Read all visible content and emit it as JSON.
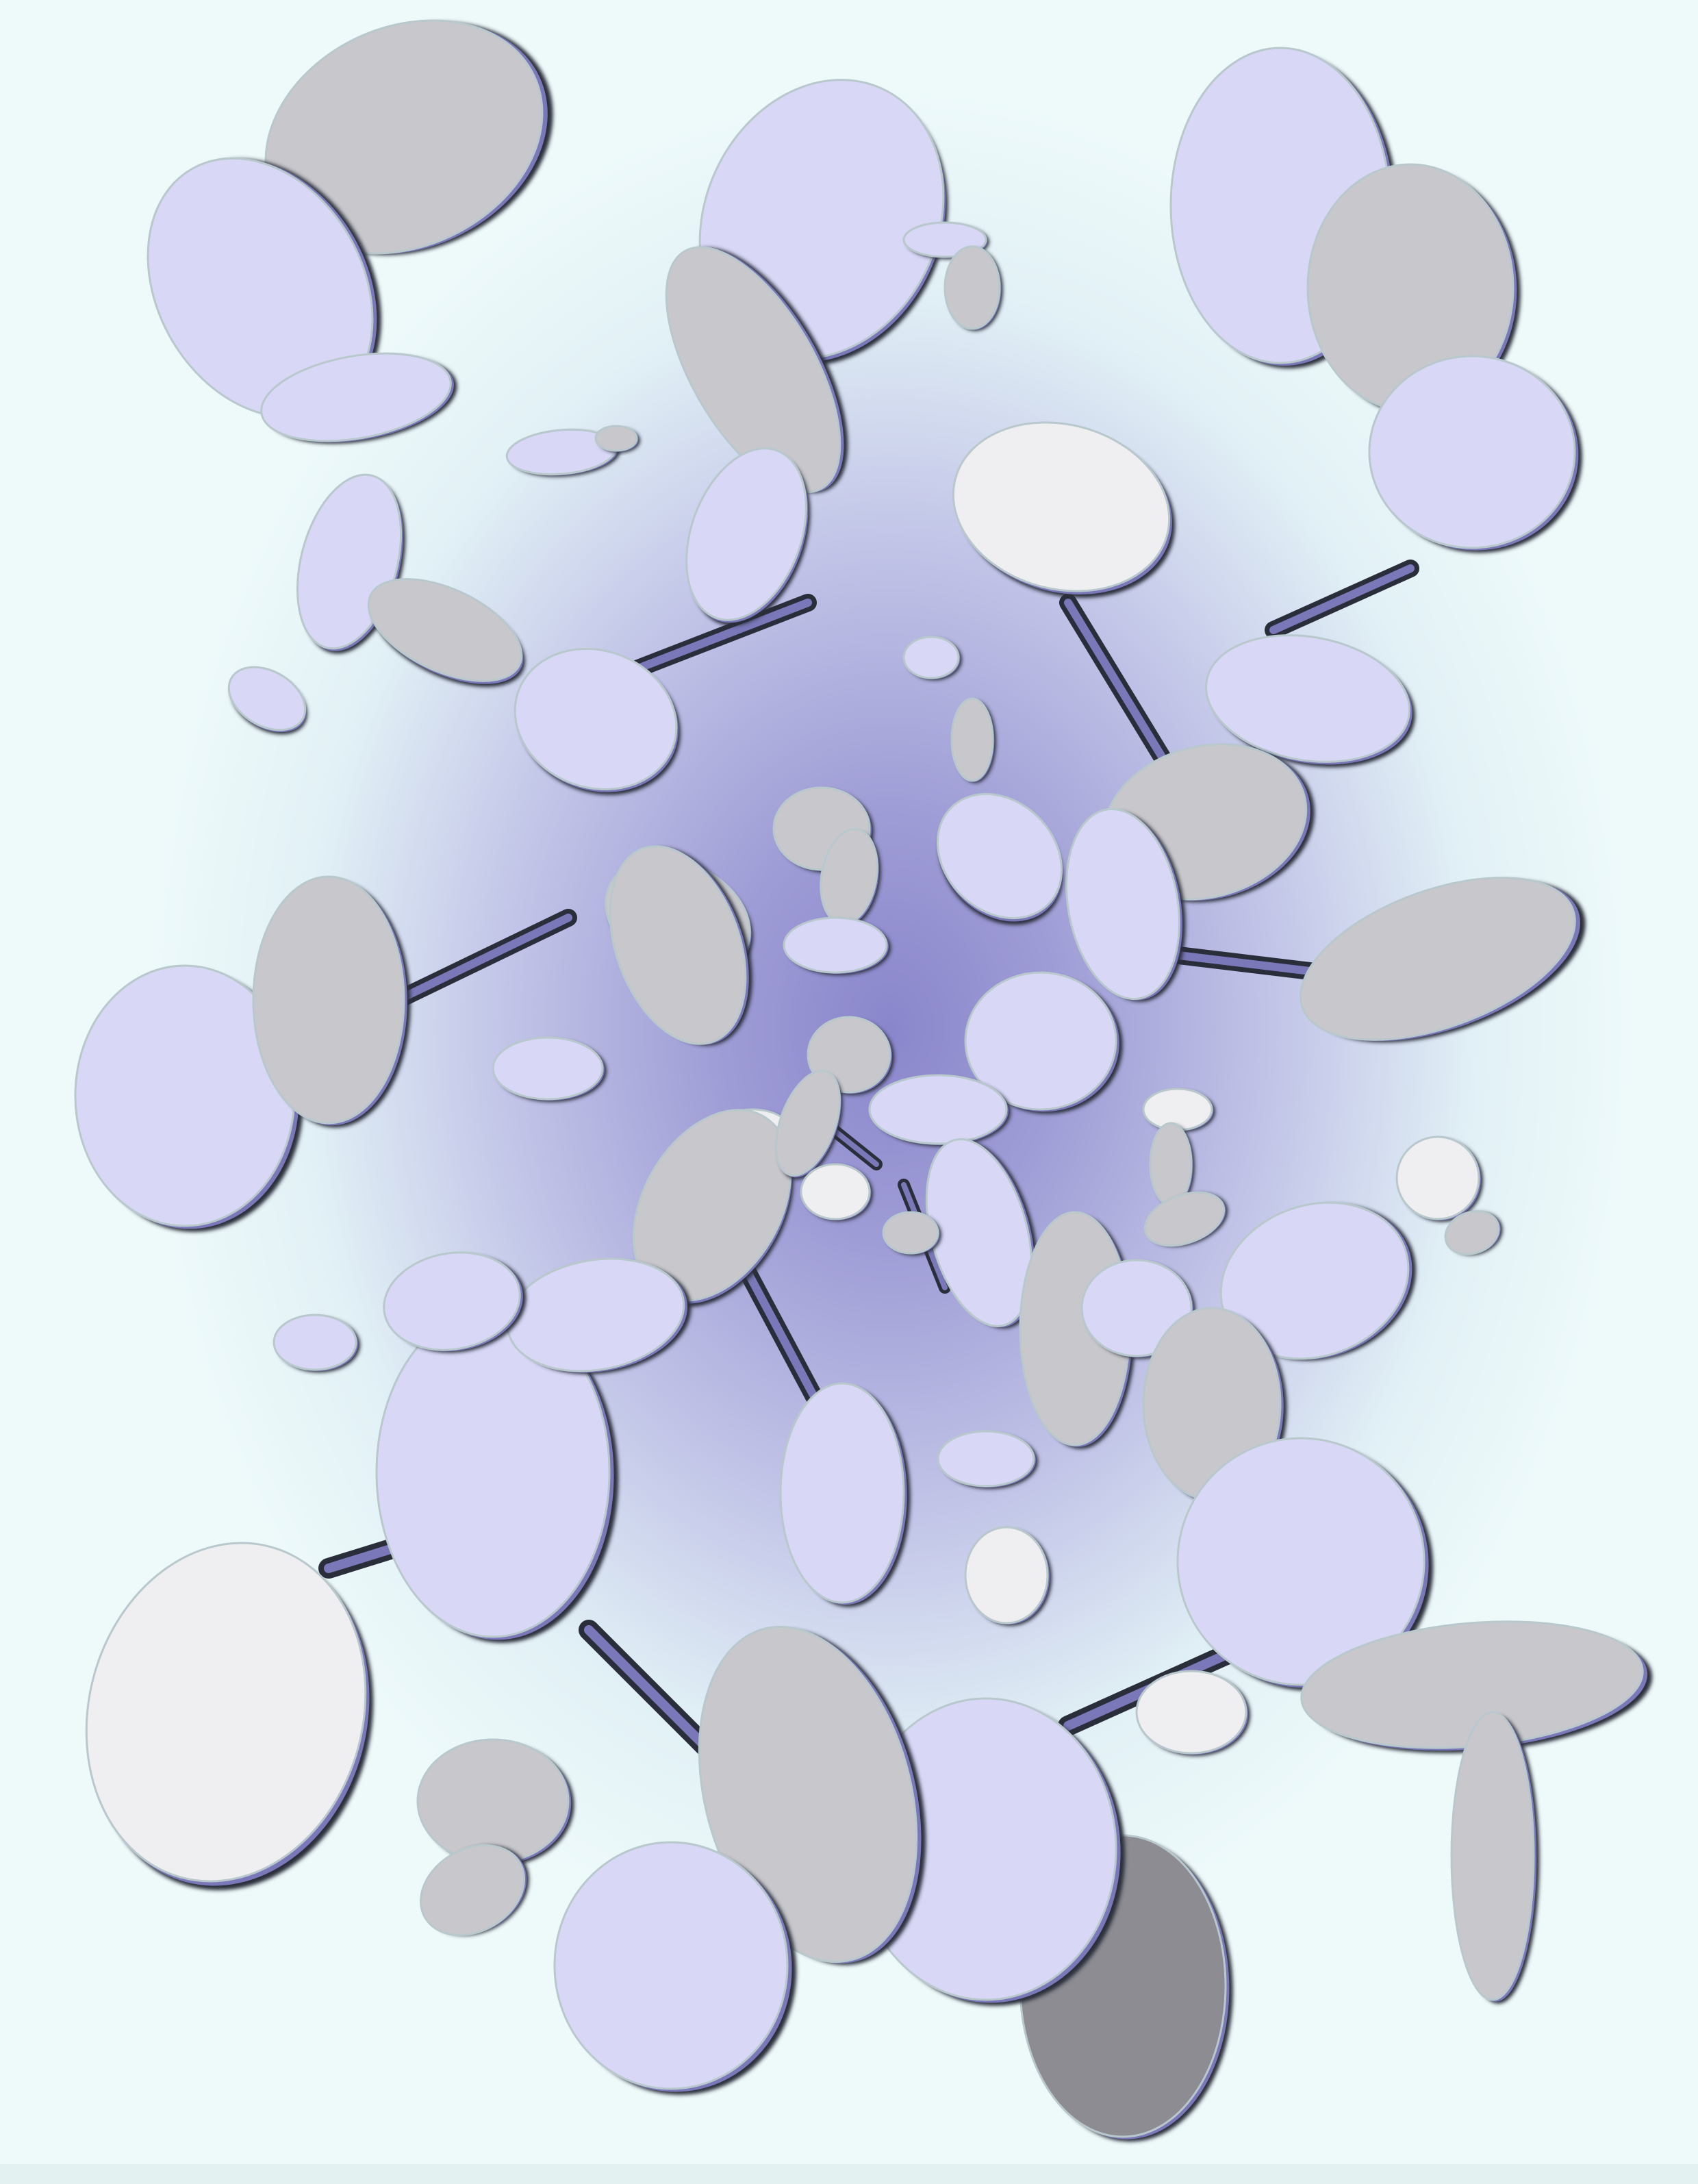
{
  "scene": {
    "description_type": "3d-render",
    "colors": {
      "background_edge": "#eefafa",
      "background_center": "#8a86cc",
      "disc_lavender": "#d8d8f6",
      "disc_white": "#efeff2",
      "disc_grey": "#c8c8cc",
      "disc_dark": "#8c8c92",
      "rim_dark": "#2a2e3a",
      "rod": "#7a78b8"
    }
  }
}
